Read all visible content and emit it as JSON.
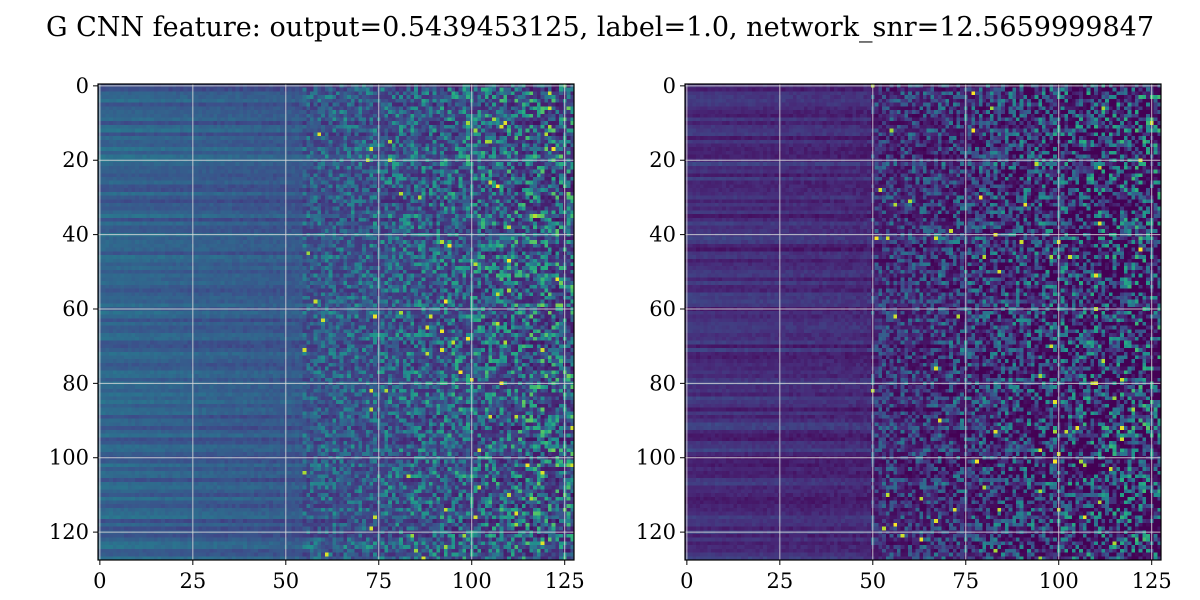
{
  "chart_data": [
    {
      "type": "heatmap",
      "title": "G CNN feature: output=0.5439453125, label=1.0, network_snr=12.5659999847",
      "x_range": [
        0,
        127
      ],
      "y_range": [
        0,
        127
      ],
      "y_inverted": true,
      "x_ticks": [
        0,
        25,
        50,
        75,
        100,
        125
      ],
      "y_ticks": [
        0,
        20,
        40,
        60,
        80,
        100,
        120
      ],
      "grid": true,
      "colormap": "viridis",
      "colors": {
        "low": "#440154",
        "mid": "#21918c",
        "high": "#fde725",
        "grid": "#d9d9d9"
      },
      "panels": [
        {
          "name": "left",
          "matrix_size": [
            128,
            128
          ],
          "description_values": {
            "base_level_low_x": 0.32,
            "base_level_high_x": 0.25,
            "noise_amplitude_high_x": 0.45,
            "transition_x": 55
          }
        },
        {
          "name": "right",
          "matrix_size": [
            128,
            128
          ],
          "description_values": {
            "base_level_low_x": 0.14,
            "base_level_high_x": 0.12,
            "noise_amplitude_high_x": 0.5,
            "transition_x": 50
          }
        }
      ]
    }
  ]
}
